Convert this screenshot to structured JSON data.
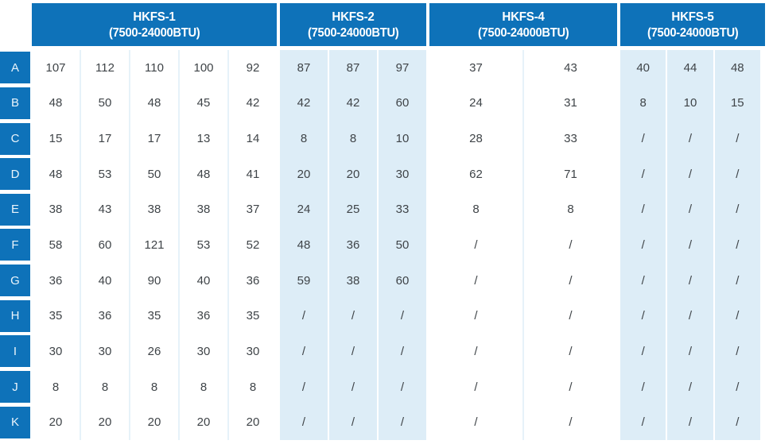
{
  "colors": {
    "header_blue": "#0e72b9",
    "tint_blue": "#ddedf7",
    "separator_light": "#e6f2f9",
    "text_dark": "#3f4448"
  },
  "chart_data": {
    "type": "table",
    "column_groups": [
      {
        "title": "HKFS-1",
        "subtitle": "(7500-24000BTU)",
        "num_columns": 5,
        "tinted": false
      },
      {
        "title": "HKFS-2",
        "subtitle": "(7500-24000BTU)",
        "num_columns": 3,
        "tinted": true
      },
      {
        "title": "HKFS-4",
        "subtitle": "(7500-24000BTU)",
        "num_columns": 2,
        "tinted": false
      },
      {
        "title": "HKFS-5",
        "subtitle": "(7500-24000BTU)",
        "num_columns": 3,
        "tinted": true
      }
    ],
    "row_labels": [
      "A",
      "B",
      "C",
      "D",
      "E",
      "F",
      "G",
      "H",
      "I",
      "J",
      "K"
    ],
    "rows": [
      {
        "label": "A",
        "values": [
          [
            "107",
            "112",
            "110",
            "100",
            "92"
          ],
          [
            "87",
            "87",
            "97"
          ],
          [
            "37",
            "43"
          ],
          [
            "40",
            "44",
            "48"
          ]
        ]
      },
      {
        "label": "B",
        "values": [
          [
            "48",
            "50",
            "48",
            "45",
            "42"
          ],
          [
            "42",
            "42",
            "60"
          ],
          [
            "24",
            "31"
          ],
          [
            "8",
            "10",
            "15"
          ]
        ]
      },
      {
        "label": "C",
        "values": [
          [
            "15",
            "17",
            "17",
            "13",
            "14"
          ],
          [
            "8",
            "8",
            "10"
          ],
          [
            "28",
            "33"
          ],
          [
            "/",
            "/",
            "/"
          ]
        ]
      },
      {
        "label": "D",
        "values": [
          [
            "48",
            "53",
            "50",
            "48",
            "41"
          ],
          [
            "20",
            "20",
            "30"
          ],
          [
            "62",
            "71"
          ],
          [
            "/",
            "/",
            "/"
          ]
        ]
      },
      {
        "label": "E",
        "values": [
          [
            "38",
            "43",
            "38",
            "38",
            "37"
          ],
          [
            "24",
            "25",
            "33"
          ],
          [
            "8",
            "8"
          ],
          [
            "/",
            "/",
            "/"
          ]
        ]
      },
      {
        "label": "F",
        "values": [
          [
            "58",
            "60",
            "121",
            "53",
            "52"
          ],
          [
            "48",
            "36",
            "50"
          ],
          [
            "/",
            "/"
          ],
          [
            "/",
            "/",
            "/"
          ]
        ]
      },
      {
        "label": "G",
        "values": [
          [
            "36",
            "40",
            "90",
            "40",
            "36"
          ],
          [
            "59",
            "38",
            "60"
          ],
          [
            "/",
            "/"
          ],
          [
            "/",
            "/",
            "/"
          ]
        ]
      },
      {
        "label": "H",
        "values": [
          [
            "35",
            "36",
            "35",
            "36",
            "35"
          ],
          [
            "/",
            "/",
            "/"
          ],
          [
            "/",
            "/"
          ],
          [
            "/",
            "/",
            "/"
          ]
        ]
      },
      {
        "label": "I",
        "values": [
          [
            "30",
            "30",
            "26",
            "30",
            "30"
          ],
          [
            "/",
            "/",
            "/"
          ],
          [
            "/",
            "/"
          ],
          [
            "/",
            "/",
            "/"
          ]
        ]
      },
      {
        "label": "J",
        "values": [
          [
            "8",
            "8",
            "8",
            "8",
            "8"
          ],
          [
            "/",
            "/",
            "/"
          ],
          [
            "/",
            "/"
          ],
          [
            "/",
            "/",
            "/"
          ]
        ]
      },
      {
        "label": "K",
        "values": [
          [
            "20",
            "20",
            "20",
            "20",
            "20"
          ],
          [
            "/",
            "/",
            "/"
          ],
          [
            "/",
            "/"
          ],
          [
            "/",
            "/",
            "/"
          ]
        ]
      }
    ]
  }
}
